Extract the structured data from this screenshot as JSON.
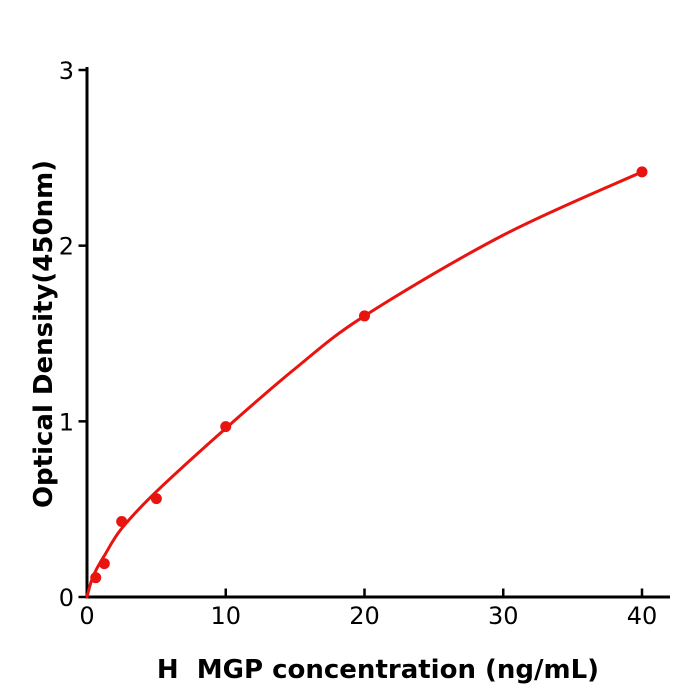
{
  "figure": {
    "background": "#ffffff"
  },
  "chart_data": {
    "type": "scatter",
    "title": "",
    "xlabel": "H  MGP concentration (ng/mL)",
    "ylabel": "Optical Density(450nm)",
    "x_ticks": [
      0,
      10,
      20,
      30,
      40
    ],
    "y_ticks": [
      0,
      1,
      2,
      3
    ],
    "xlim": [
      0,
      42
    ],
    "ylim": [
      0,
      3
    ],
    "grid": false,
    "legend": null,
    "series": [
      {
        "name": "standard-curve-points",
        "x": [
          0.63,
          1.25,
          2.5,
          5,
          10,
          20,
          40
        ],
        "y": [
          0.11,
          0.19,
          0.43,
          0.56,
          0.97,
          1.6,
          2.42
        ]
      }
    ],
    "fit_curve_anchors": {
      "x": [
        0,
        0.31,
        0.63,
        1.25,
        2.5,
        5,
        10,
        15,
        20,
        30,
        40
      ],
      "y": [
        0,
        0.09,
        0.15,
        0.235,
        0.39,
        0.6,
        0.96,
        1.3,
        1.6,
        2.06,
        2.42
      ]
    },
    "colors": {
      "series": "#e81410",
      "axis": "#000000",
      "text": "#000000"
    }
  }
}
